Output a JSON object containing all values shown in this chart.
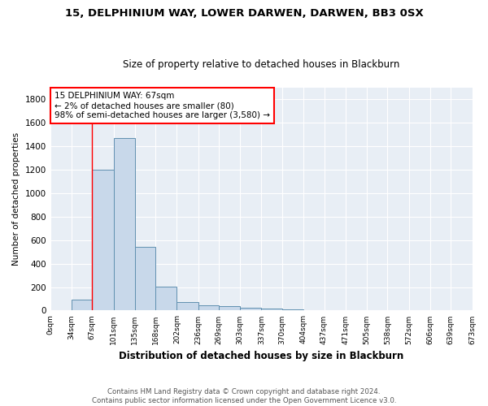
{
  "title": "15, DELPHINIUM WAY, LOWER DARWEN, DARWEN, BB3 0SX",
  "subtitle": "Size of property relative to detached houses in Blackburn",
  "xlabel": "Distribution of detached houses by size in Blackburn",
  "ylabel": "Number of detached properties",
  "bin_edges": [
    0,
    34,
    67,
    101,
    135,
    168,
    202,
    236,
    269,
    303,
    337,
    370,
    404,
    437,
    471,
    505,
    538,
    572,
    606,
    639,
    673
  ],
  "bar_heights": [
    0,
    90,
    1200,
    1470,
    540,
    205,
    70,
    47,
    35,
    25,
    15,
    10,
    5,
    2,
    1,
    0,
    0,
    0,
    0,
    0
  ],
  "bar_color": "#c8d8ea",
  "bar_edge_color": "#6090b0",
  "red_line_x": 67,
  "annotation_box_text": "15 DELPHINIUM WAY: 67sqm\n← 2% of detached houses are smaller (80)\n98% of semi-detached houses are larger (3,580) →",
  "footer_text": "Contains HM Land Registry data © Crown copyright and database right 2024.\nContains public sector information licensed under the Open Government Licence v3.0.",
  "ylim": [
    0,
    1900
  ],
  "yticks": [
    0,
    200,
    400,
    600,
    800,
    1000,
    1200,
    1400,
    1600,
    1800
  ],
  "background_color": "#ffffff",
  "plot_background_color": "#e8eef5",
  "grid_color": "#ffffff"
}
